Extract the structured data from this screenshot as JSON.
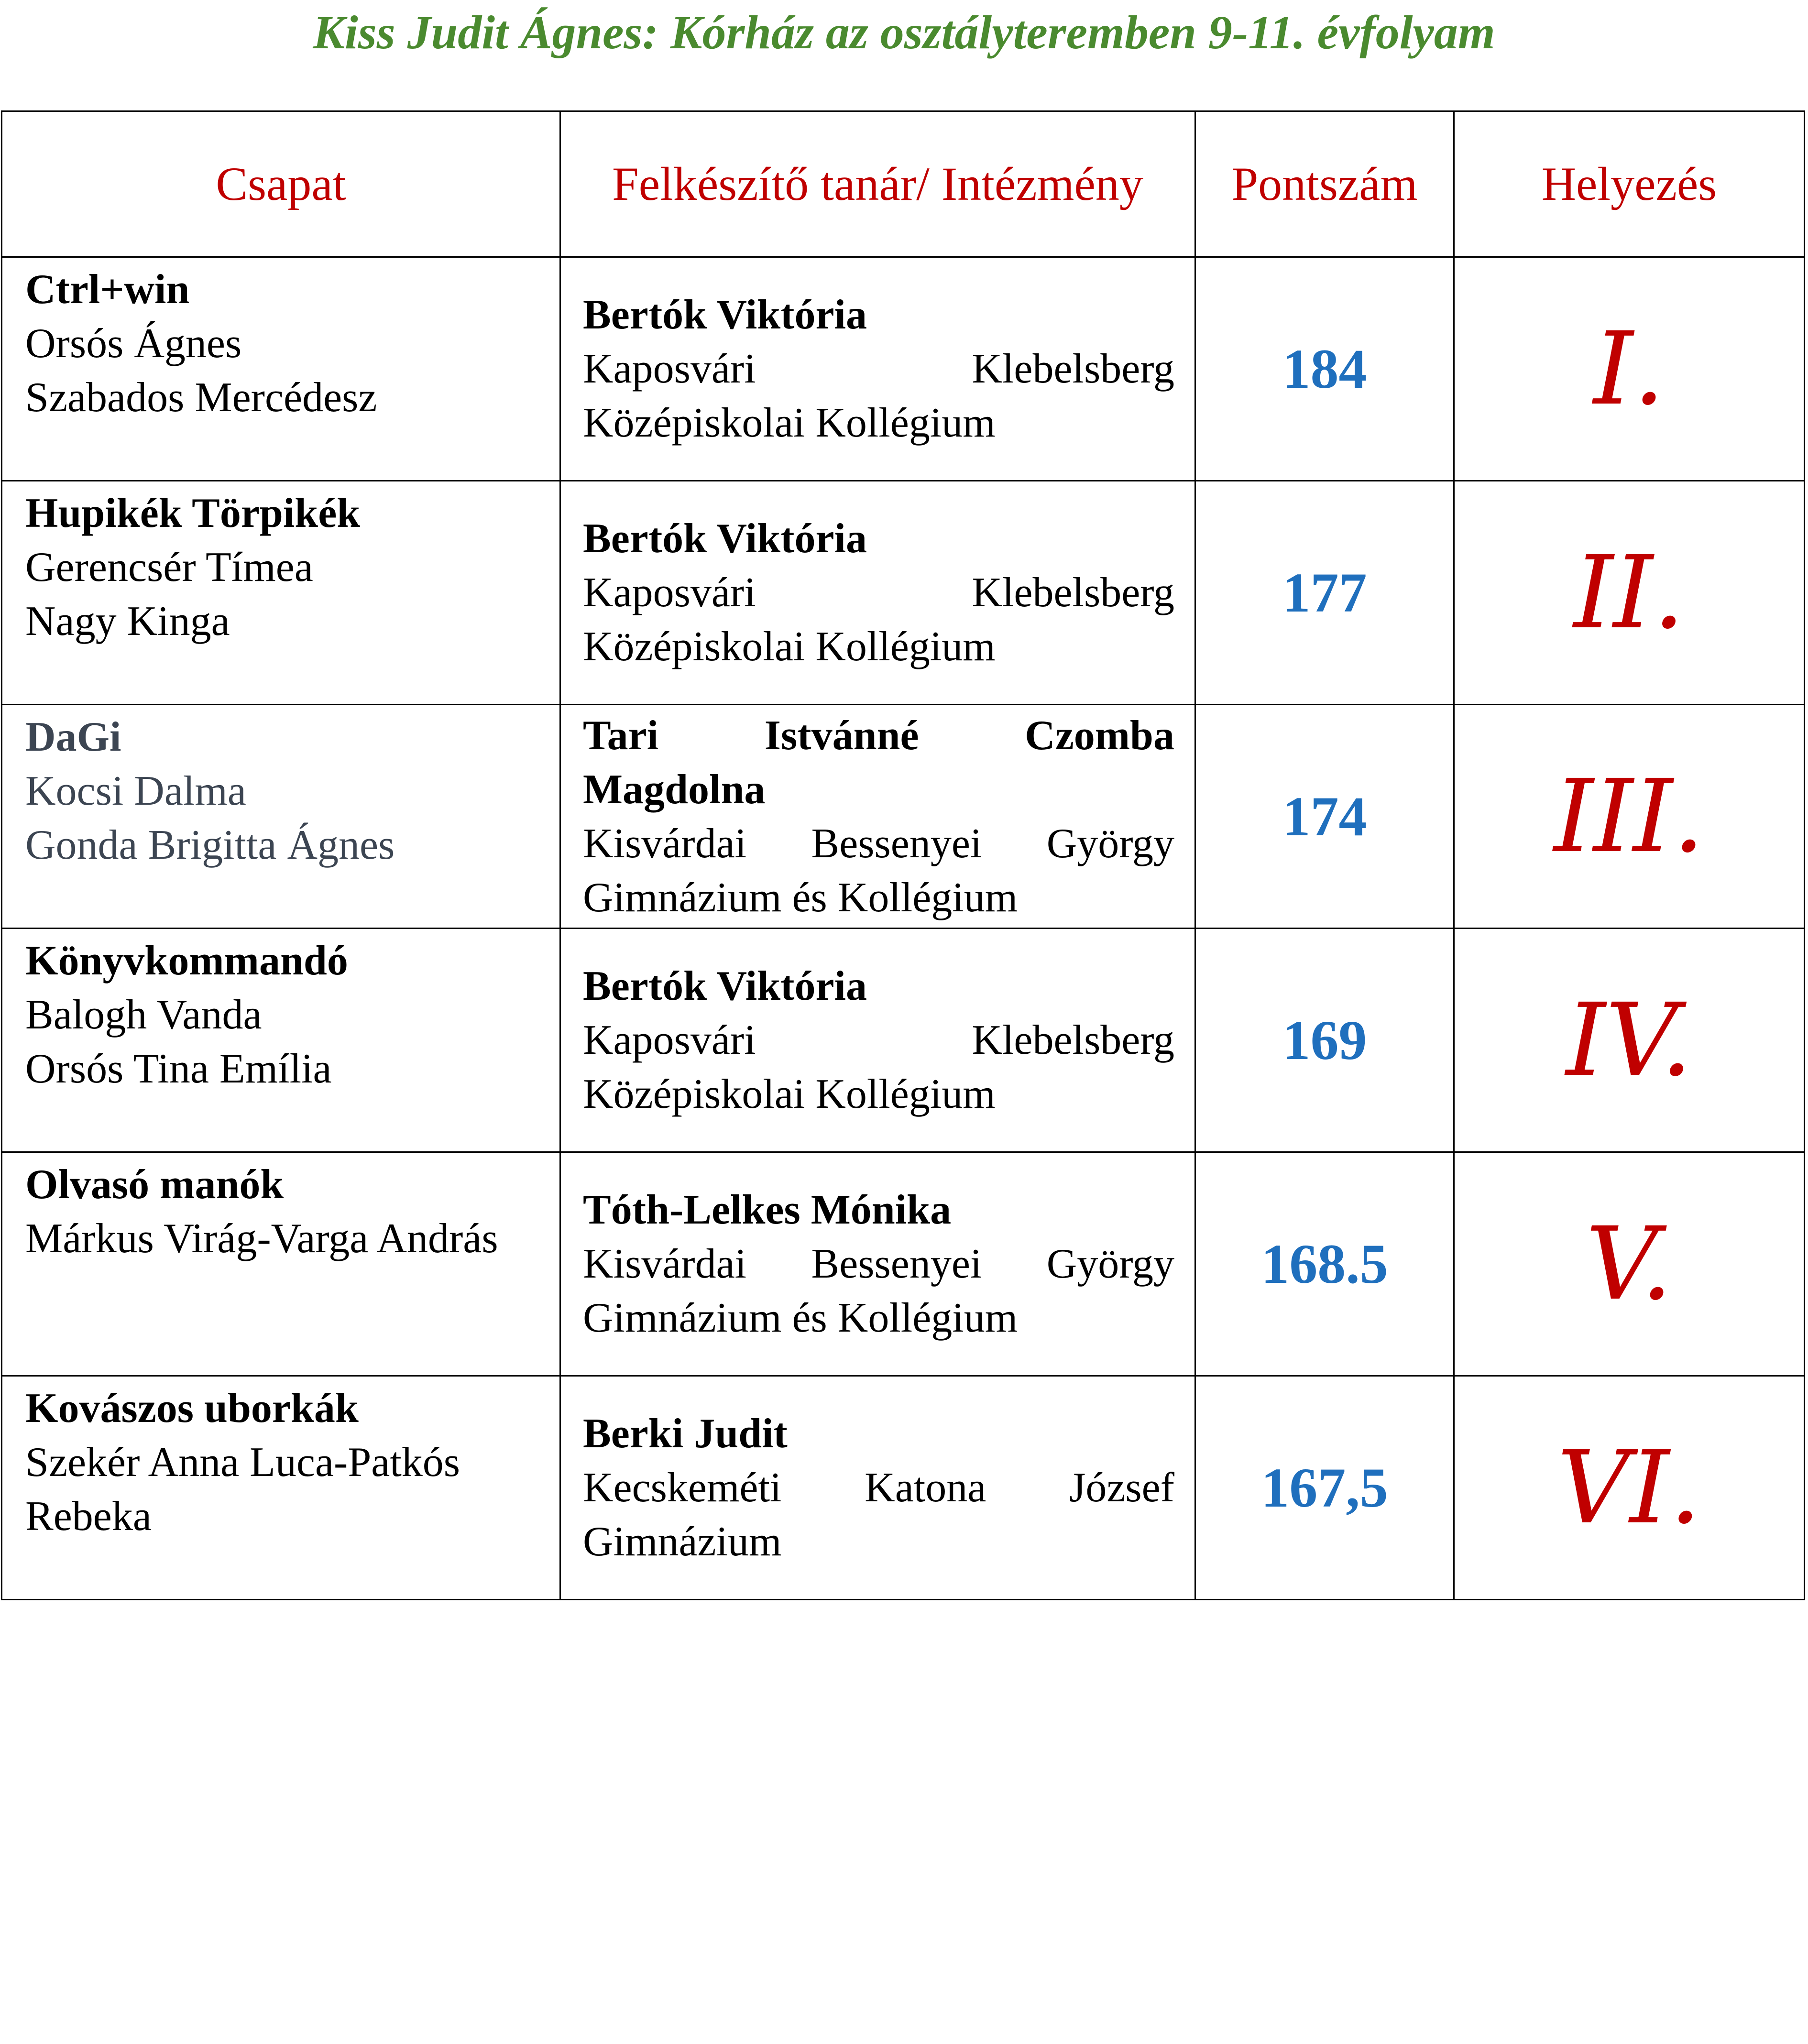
{
  "header": {
    "title": "Kiss Judit Ágnes: Kórház az osztályteremben 9-11. évfolyam"
  },
  "table": {
    "columns": [
      "Csapat",
      "Felkészítő tanár/ Intézmény",
      "Pontszám",
      "Helyezés"
    ],
    "rows": [
      {
        "team": {
          "name": "Ctrl+win",
          "members": [
            "Orsós Ágnes",
            "Szabados Mercédesz"
          ]
        },
        "teacher": {
          "name": "Bertók Viktória",
          "institution": "Kaposvári Klebelsberg Középiskolai Kollégium"
        },
        "score": "184",
        "place": "I."
      },
      {
        "team": {
          "name": "Hupikék Törpikék",
          "members": [
            "Gerencsér Tímea",
            "Nagy Kinga"
          ]
        },
        "teacher": {
          "name": "Bertók Viktória",
          "institution": "Kaposvári Klebelsberg Középiskolai Kollégium"
        },
        "score": "177",
        "place": "II."
      },
      {
        "team": {
          "name": "DaGi",
          "members": [
            "Kocsi Dalma",
            "Gonda Brigitta Ágnes"
          ]
        },
        "teacher": {
          "name": "Tari Istvánné Czomba Magdolna",
          "institution": "Kisvárdai Bessenyei György Gimnázium és Kollégium"
        },
        "score": "174",
        "place": "III."
      },
      {
        "team": {
          "name": "Könyvkommandó",
          "members": [
            "Balogh Vanda",
            "Orsós Tina Emília"
          ]
        },
        "teacher": {
          "name": "Bertók Viktória",
          "institution": "Kaposvári Klebelsberg Középiskolai Kollégium"
        },
        "score": "169",
        "place": "IV."
      },
      {
        "team": {
          "name": "Olvasó manók",
          "members": [
            "Márkus Virág-Varga András"
          ]
        },
        "teacher": {
          "name": "Tóth-Lelkes Mónika",
          "institution": "Kisvárdai Bessenyei György Gimnázium és Kollégium"
        },
        "score": "168.5",
        "place": "V."
      },
      {
        "team": {
          "name": "Kovászos uborkák",
          "members": [
            "Szekér Anna Luca-Patkós Rebeka"
          ]
        },
        "teacher": {
          "name": "Berki Judit",
          "institution": "Kecskeméti Katona József Gimnázium"
        },
        "score": "167,5",
        "place": "VI."
      }
    ]
  }
}
